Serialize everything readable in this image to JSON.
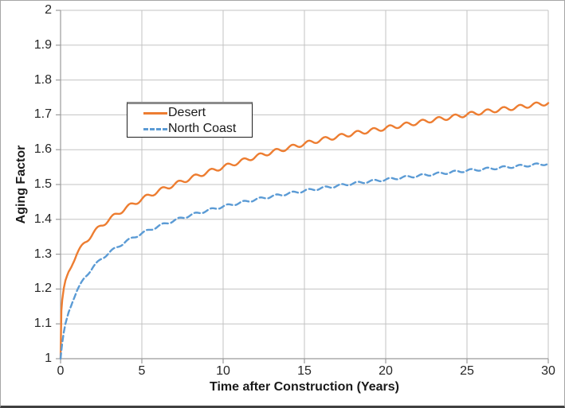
{
  "colors": {
    "desert_line": "#ED7D31",
    "north_coast_line": "#5B9BD5",
    "gridline": "#C3C3C3",
    "axis_line": "#9B9B9B",
    "tick_text": "#262626",
    "title_text": "#1a1a1a",
    "figure_border": "#A6A6A6",
    "figure_border_bottom": "#404040",
    "legend_border": "#1f1f1f"
  },
  "chart_data": {
    "type": "line",
    "title": "",
    "xlabel": "Time after Construction (Years)",
    "ylabel": "Aging Factor",
    "xlim": [
      0,
      30
    ],
    "ylim": [
      1,
      2
    ],
    "x_ticks": [
      0,
      5,
      10,
      15,
      20,
      25,
      30
    ],
    "x_tick_labels": [
      "0",
      "5",
      "10",
      "15",
      "20",
      "25",
      "30"
    ],
    "y_ticks": [
      1,
      1.1,
      1.2,
      1.3,
      1.4,
      1.5,
      1.6,
      1.7,
      1.8,
      1.9,
      2
    ],
    "y_tick_labels": [
      "1",
      "1.1",
      "1.2",
      "1.3",
      "1.4",
      "1.5",
      "1.6",
      "1.7",
      "1.8",
      "1.9",
      "2"
    ],
    "grid": true,
    "legend_position": "inside-upper-left",
    "series": [
      {
        "name": "Desert",
        "color": "#ED7D31",
        "line_style": "solid",
        "seasonal_wiggle": {
          "amplitude": 0.006,
          "period_years": 1
        },
        "points": [
          [
            0,
            1.0
          ],
          [
            0.05,
            1.136
          ],
          [
            0.1,
            1.164
          ],
          [
            0.2,
            1.197
          ],
          [
            0.3,
            1.219
          ],
          [
            0.5,
            1.25
          ],
          [
            0.75,
            1.278
          ],
          [
            1,
            1.3
          ],
          [
            1.5,
            1.334
          ],
          [
            2,
            1.36
          ],
          [
            2.5,
            1.382
          ],
          [
            3,
            1.4
          ],
          [
            4,
            1.432
          ],
          [
            5,
            1.458
          ],
          [
            6,
            1.481
          ],
          [
            7,
            1.5
          ],
          [
            8,
            1.518
          ],
          [
            9,
            1.535
          ],
          [
            10,
            1.55
          ],
          [
            11,
            1.565
          ],
          [
            12,
            1.58
          ],
          [
            13,
            1.593
          ],
          [
            14,
            1.605
          ],
          [
            15,
            1.617
          ],
          [
            16,
            1.628
          ],
          [
            17,
            1.637
          ],
          [
            18,
            1.646
          ],
          [
            19,
            1.654
          ],
          [
            20,
            1.662
          ],
          [
            21,
            1.67
          ],
          [
            22,
            1.678
          ],
          [
            23,
            1.686
          ],
          [
            24,
            1.693
          ],
          [
            25,
            1.701
          ],
          [
            26,
            1.708
          ],
          [
            27,
            1.715
          ],
          [
            28,
            1.721
          ],
          [
            29,
            1.728
          ],
          [
            30,
            1.734
          ]
        ]
      },
      {
        "name": "North Coast",
        "color": "#5B9BD5",
        "line_style": "dashed",
        "seasonal_wiggle": {
          "amplitude": 0.0035,
          "period_years": 1
        },
        "points": [
          [
            0,
            1.0
          ],
          [
            0.05,
            1.023
          ],
          [
            0.1,
            1.042
          ],
          [
            0.2,
            1.073
          ],
          [
            0.3,
            1.097
          ],
          [
            0.5,
            1.134
          ],
          [
            0.75,
            1.168
          ],
          [
            1,
            1.194
          ],
          [
            1.5,
            1.234
          ],
          [
            2,
            1.263
          ],
          [
            2.5,
            1.286
          ],
          [
            3,
            1.305
          ],
          [
            4,
            1.336
          ],
          [
            5,
            1.36
          ],
          [
            6,
            1.38
          ],
          [
            7,
            1.397
          ],
          [
            8,
            1.412
          ],
          [
            9,
            1.425
          ],
          [
            10,
            1.437
          ],
          [
            11,
            1.447
          ],
          [
            12,
            1.457
          ],
          [
            13,
            1.466
          ],
          [
            14,
            1.474
          ],
          [
            15,
            1.482
          ],
          [
            16,
            1.489
          ],
          [
            17,
            1.496
          ],
          [
            18,
            1.503
          ],
          [
            19,
            1.509
          ],
          [
            20,
            1.514
          ],
          [
            21,
            1.52
          ],
          [
            22,
            1.525
          ],
          [
            23,
            1.53
          ],
          [
            24,
            1.535
          ],
          [
            25,
            1.54
          ],
          [
            26,
            1.544
          ],
          [
            27,
            1.548
          ],
          [
            28,
            1.552
          ],
          [
            29,
            1.556
          ],
          [
            30,
            1.56
          ]
        ]
      }
    ]
  }
}
